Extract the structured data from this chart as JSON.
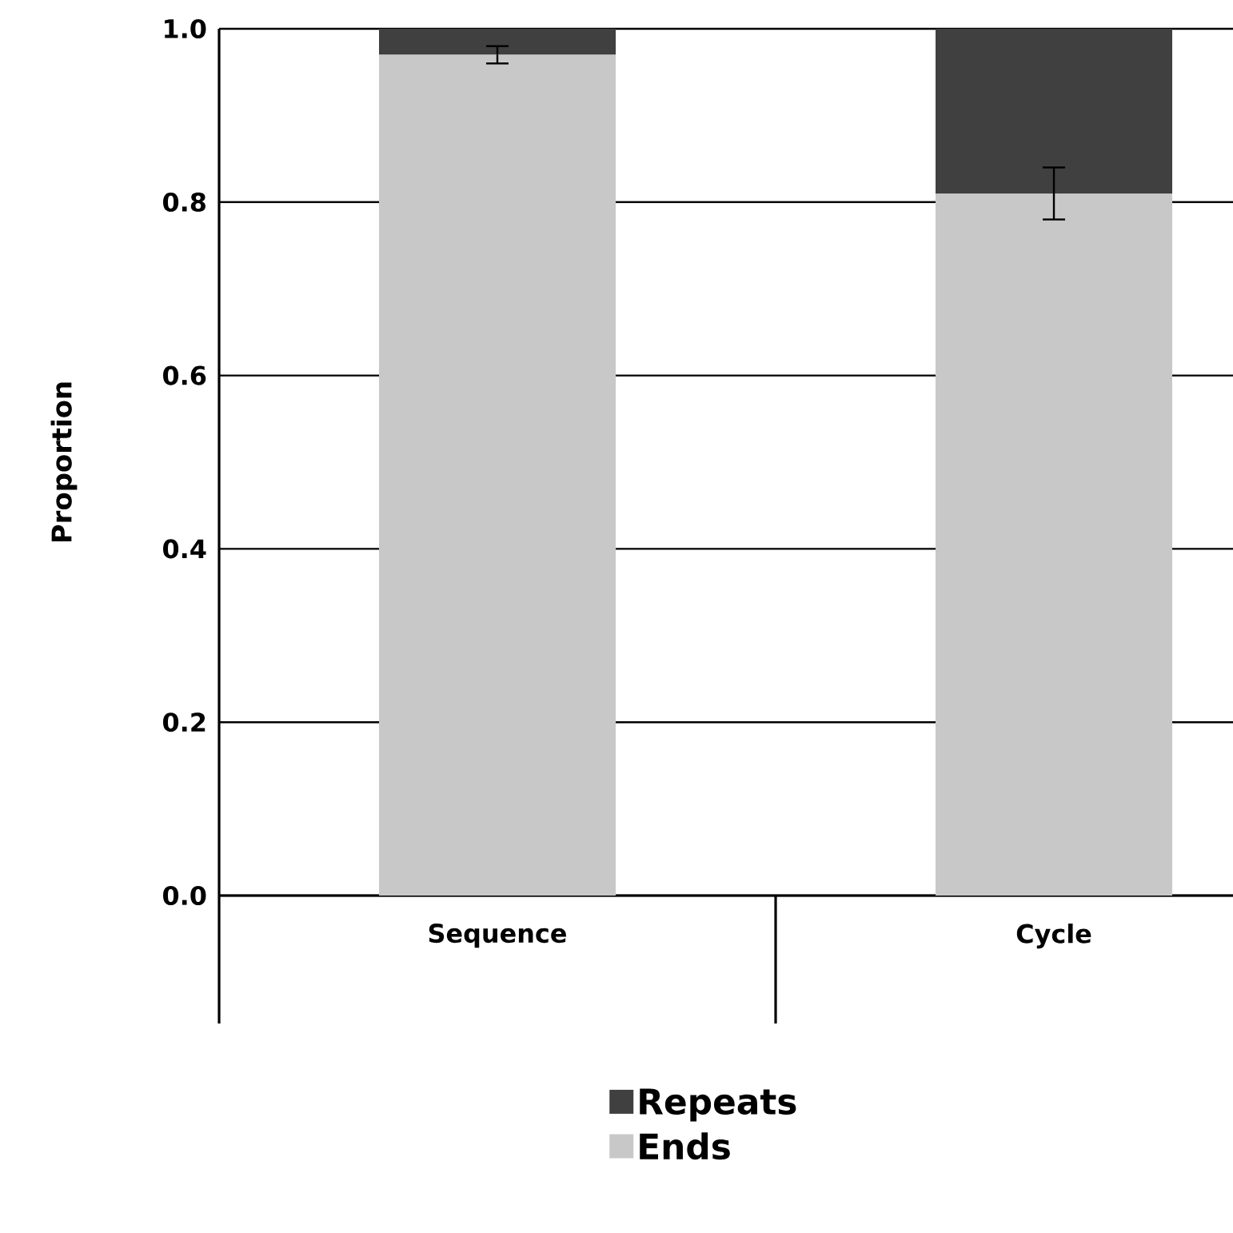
{
  "chart_data": {
    "type": "bar",
    "stacked": true,
    "ylabel": "Proportion",
    "categories": [
      "Sequence",
      "Cycle"
    ],
    "series": [
      {
        "name": "Ends",
        "color": "#c8c8c8",
        "values": [
          0.97,
          0.81
        ],
        "errors": [
          0.01,
          0.03
        ]
      },
      {
        "name": "Repeats",
        "color": "#404040",
        "values": [
          0.03,
          0.19
        ]
      }
    ],
    "ylim": [
      0,
      1
    ],
    "yticks": [
      {
        "value": 0,
        "label": "0.0"
      },
      {
        "value": 0.2,
        "label": "0.2"
      },
      {
        "value": 0.4,
        "label": "0.4"
      },
      {
        "value": 0.6,
        "label": "0.6"
      },
      {
        "value": 0.8,
        "label": "0.8"
      },
      {
        "value": 1,
        "label": "1.0"
      }
    ],
    "grid": "y",
    "legend": "bottom"
  }
}
